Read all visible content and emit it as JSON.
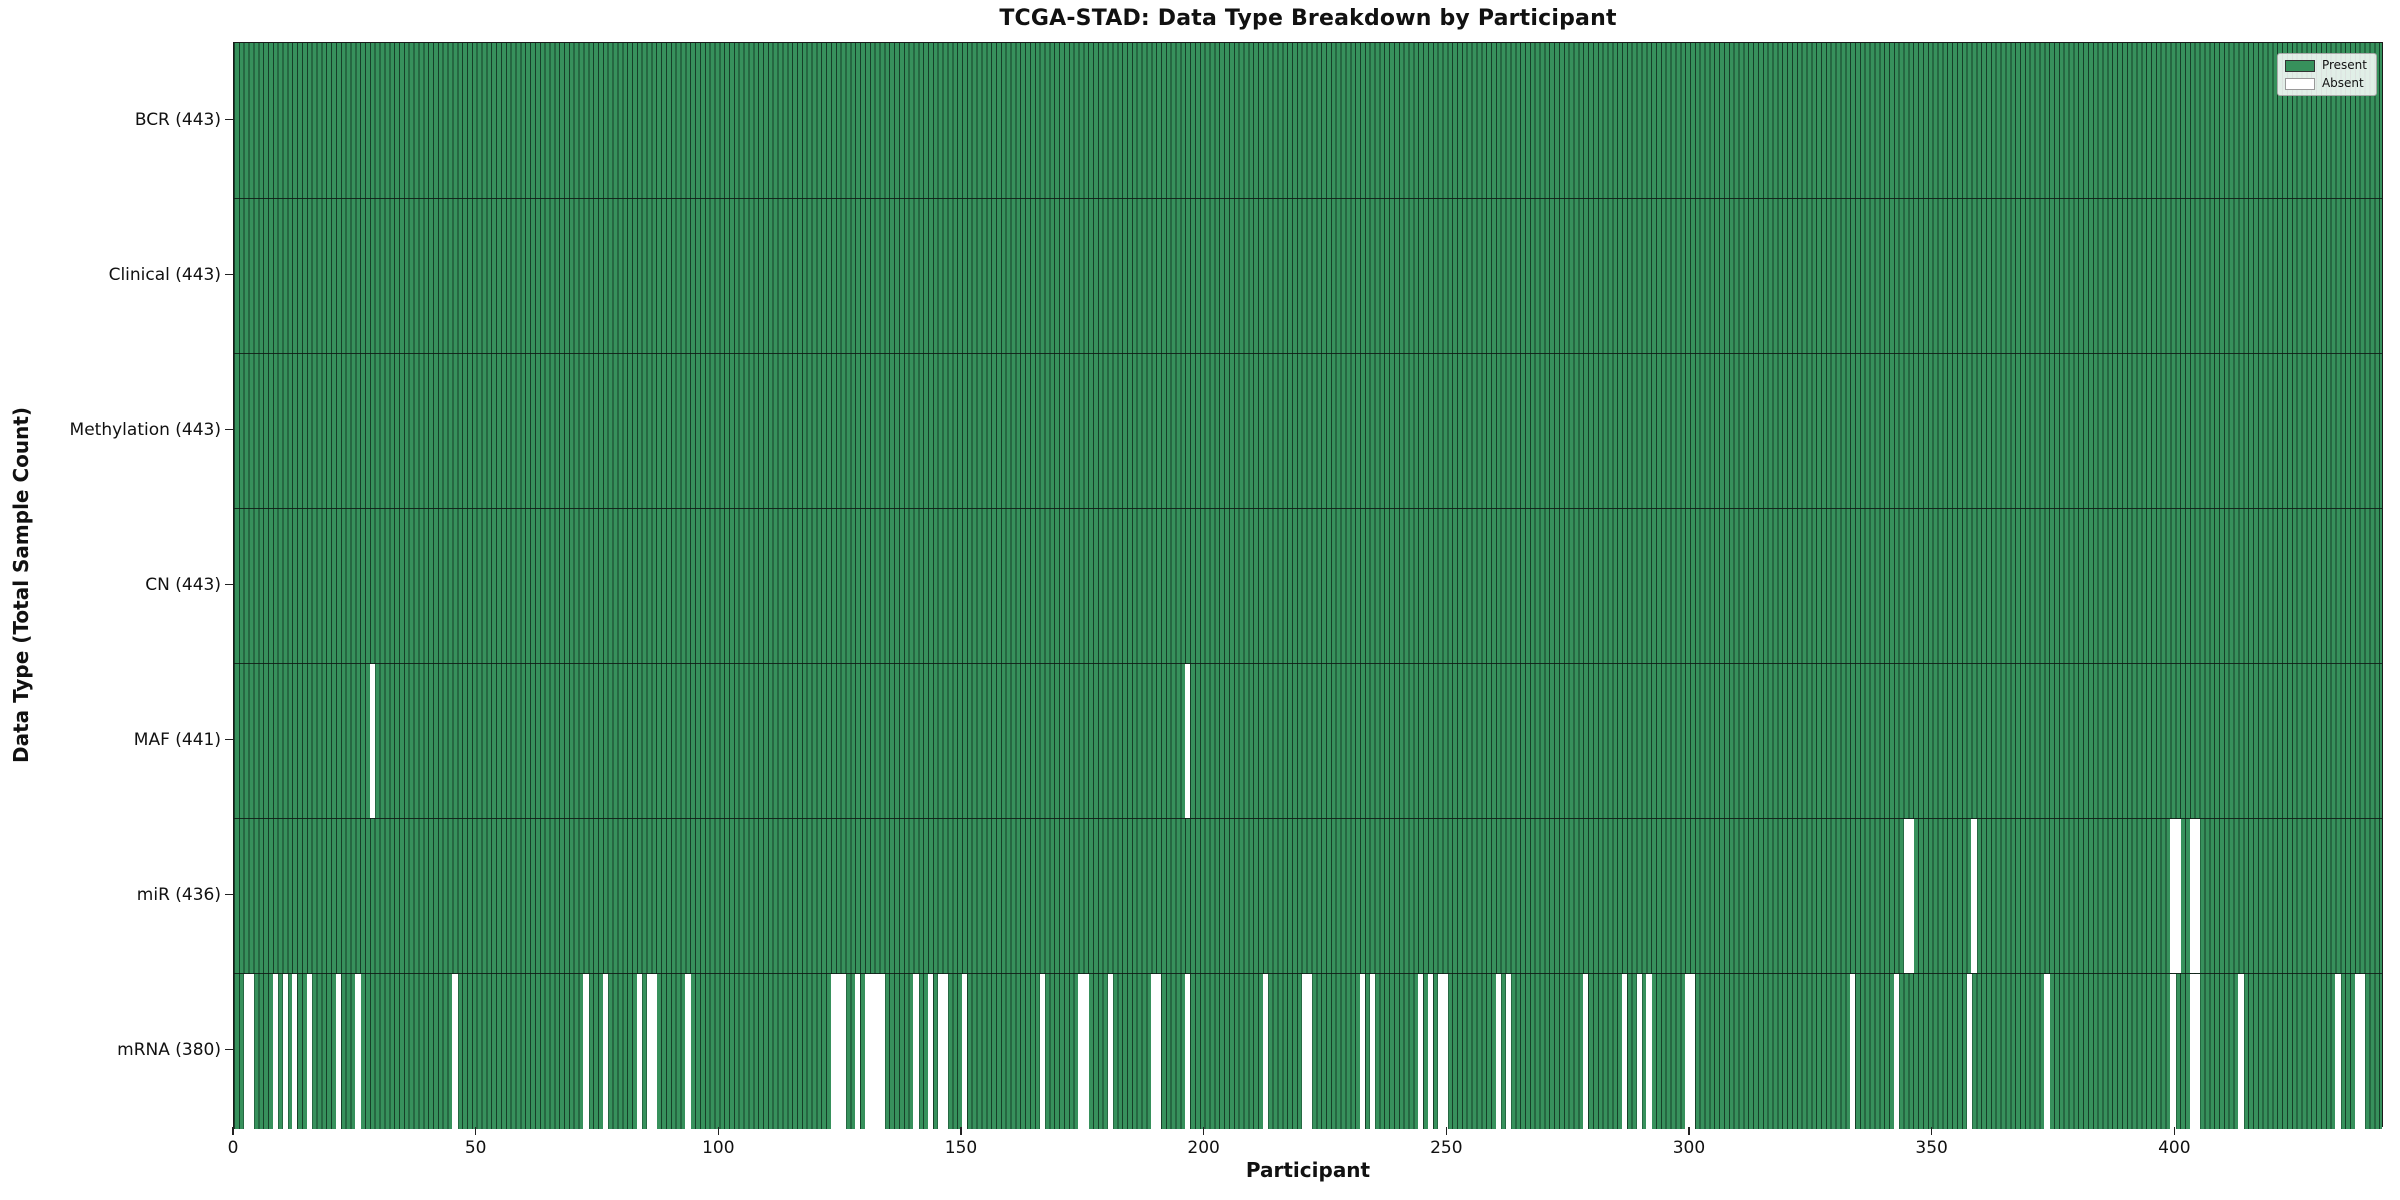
{
  "chart_data": {
    "type": "heatmap",
    "title": "TCGA-STAD: Data Type Breakdown by Participant",
    "xlabel": "Participant",
    "ylabel": "Data Type (Total Sample Count)",
    "n_participants": 443,
    "x_range": [
      0,
      443
    ],
    "x_ticks": [
      0,
      50,
      100,
      150,
      200,
      250,
      300,
      350,
      400
    ],
    "grid": false,
    "legend": {
      "position": "upper right",
      "entries": [
        {
          "label": "Present",
          "color": "#37915c"
        },
        {
          "label": "Absent",
          "color": "#ffffff"
        }
      ]
    },
    "colors": {
      "present": "#37915c",
      "absent": "#ffffff",
      "bar_edge": "rgba(13,43,28,0.8)",
      "row_divider": "rgba(15,25,20,0.85)",
      "spine": "#1a1a1a",
      "legend_bg": "rgba(255,255,255,0.85)",
      "legend_border": "#aaaaaa"
    },
    "rows": [
      {
        "data_type": "BCR",
        "label": "BCR (443)",
        "present_count": 443,
        "absent_participants": []
      },
      {
        "data_type": "Clinical",
        "label": "Clinical (443)",
        "present_count": 443,
        "absent_participants": []
      },
      {
        "data_type": "Methylation",
        "label": "Methylation (443)",
        "present_count": 443,
        "absent_participants": []
      },
      {
        "data_type": "CN",
        "label": "CN (443)",
        "present_count": 443,
        "absent_participants": []
      },
      {
        "data_type": "MAF",
        "label": "MAF (441)",
        "present_count": 441,
        "absent_participants": [
          28,
          196
        ]
      },
      {
        "data_type": "miR",
        "label": "miR (436)",
        "present_count": 436,
        "absent_participants": [
          344,
          345,
          358,
          399,
          400,
          403,
          404
        ]
      },
      {
        "data_type": "mRNA",
        "label": "mRNA (380)",
        "present_count": 380,
        "absent_participants": [
          2,
          3,
          8,
          10,
          12,
          15,
          21,
          25,
          45,
          72,
          76,
          83,
          85,
          86,
          93,
          123,
          124,
          125,
          128,
          130,
          131,
          132,
          133,
          140,
          143,
          145,
          146,
          150,
          166,
          174,
          175,
          180,
          189,
          190,
          196,
          212,
          220,
          221,
          232,
          234,
          244,
          246,
          248,
          249,
          260,
          262,
          278,
          286,
          289,
          291,
          299,
          300,
          333,
          342,
          357,
          373,
          399,
          403,
          404,
          413,
          433,
          437,
          438
        ]
      }
    ]
  }
}
